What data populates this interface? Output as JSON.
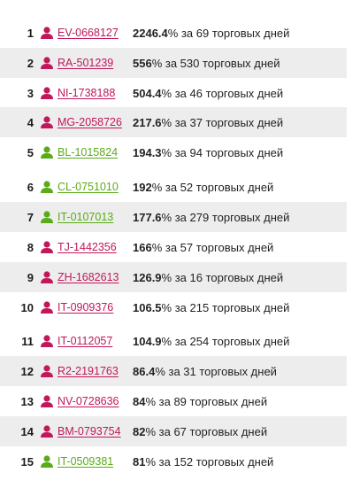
{
  "colors": {
    "red": "#c0185a",
    "green": "#5aab19",
    "shade": "#ededed"
  },
  "rows": [
    {
      "rank": "1",
      "code": "EV-0668127",
      "color": "red",
      "value": "2246.4",
      "sign": "%",
      "rest": " за 69 торговых дней",
      "icon": "user-icon"
    },
    {
      "rank": "2",
      "code": "RA-501239",
      "color": "red",
      "value": "556",
      "sign": "%",
      "rest": " за 530 торговых дней",
      "icon": "user-icon"
    },
    {
      "rank": "3",
      "code": "NI-1738188",
      "color": "red",
      "value": "504.4",
      "sign": "%",
      "rest": " за 46 торговых дней",
      "icon": "user-icon"
    },
    {
      "rank": "4",
      "code": "MG-2058726",
      "color": "red",
      "value": "217.6",
      "sign": "%",
      "rest": " за 37 торговых дней",
      "icon": "user-icon"
    },
    {
      "rank": "5",
      "code": "BL-1015824",
      "color": "green",
      "value": "194.3",
      "sign": "%",
      "rest": " за 94 торговых дней",
      "icon": "user-icon"
    },
    {
      "rank": "6",
      "code": "CL-0751010",
      "color": "green",
      "value": "192",
      "sign": "%",
      "rest": " за 52 торговых дней",
      "icon": "user-icon"
    },
    {
      "rank": "7",
      "code": "IT-0107013",
      "color": "green",
      "value": "177.6",
      "sign": "%",
      "rest": " за 279 торговых дней",
      "icon": "user-icon"
    },
    {
      "rank": "8",
      "code": "TJ-1442356",
      "color": "red",
      "value": "166",
      "sign": "%",
      "rest": " за 57 торговых дней",
      "icon": "user-icon"
    },
    {
      "rank": "9",
      "code": "ZH-1682613",
      "color": "red",
      "value": "126.9",
      "sign": "%",
      "rest": " за 16 торговых дней",
      "icon": "user-icon"
    },
    {
      "rank": "10",
      "code": "IT-0909376",
      "color": "red",
      "value": "106.5",
      "sign": "%",
      "rest": " за 215 торговых дней",
      "icon": "user-icon"
    },
    {
      "rank": "11",
      "code": "IT-0112057",
      "color": "red",
      "value": "104.9",
      "sign": "%",
      "rest": " за 254 торговых дней",
      "icon": "user-icon"
    },
    {
      "rank": "12",
      "code": "R2-2191763",
      "color": "red",
      "value": "86.4",
      "sign": "%",
      "rest": " за 31 торговых дней",
      "icon": "user-icon"
    },
    {
      "rank": "13",
      "code": "NV-0728636",
      "color": "red",
      "value": "84",
      "sign": "%",
      "rest": " за 89 торговых дней",
      "icon": "user-icon"
    },
    {
      "rank": "14",
      "code": "BM-0793754",
      "color": "red",
      "value": "82",
      "sign": "%",
      "rest": " за 67 торговых дней",
      "icon": "user-icon"
    },
    {
      "rank": "15",
      "code": "IT-0509381",
      "color": "green",
      "value": "81",
      "sign": "%",
      "rest": " за 152 торговых дней",
      "icon": "user-icon"
    }
  ]
}
